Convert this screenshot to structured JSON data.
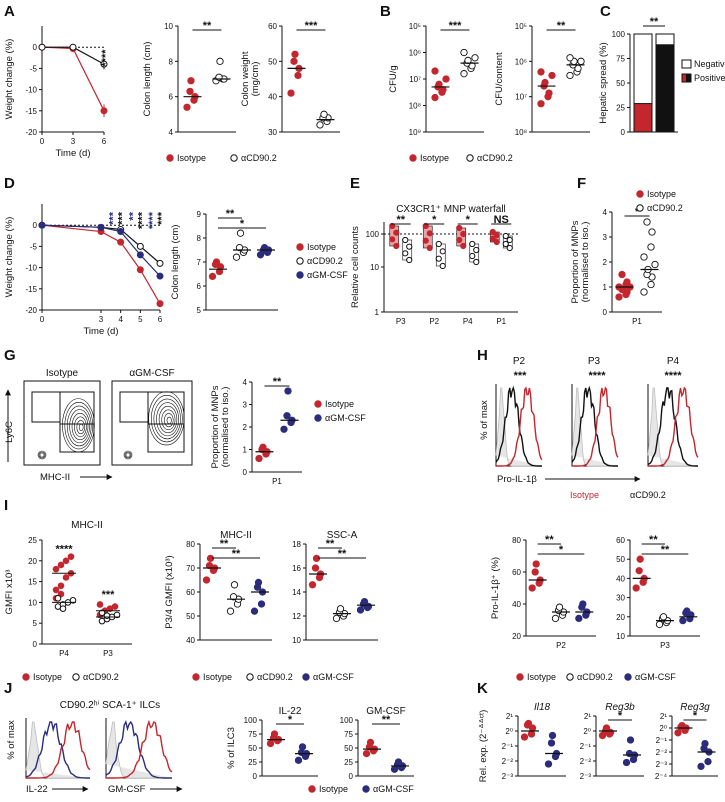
{
  "colors": {
    "red": "#c4262e",
    "navy": "#2b2c7c",
    "black": "#111111",
    "grey": "#bdbdbd",
    "pink": "#e8a5a8"
  },
  "legend": {
    "isotype": "Isotype",
    "acd90": "αCD90.2",
    "agm": "αGM-CSF"
  },
  "letters": {
    "A": "A",
    "B": "B",
    "C": "C",
    "D": "D",
    "E": "E",
    "F": "F",
    "G": "G",
    "H": "H",
    "I": "I",
    "J": "J",
    "K": "K"
  },
  "chart_data": [
    {
      "id": "A1",
      "type": "line",
      "ylabel": "Weight change (%)",
      "xlabel": "Time (d)",
      "x": [
        0,
        3,
        6
      ],
      "xlim": [
        0,
        6
      ],
      "ylim": [
        -20,
        5
      ],
      "yticks": [
        0,
        -5,
        -10,
        -15,
        -20
      ],
      "xticks": [
        0,
        3,
        6
      ],
      "series": [
        {
          "name": "Isotype",
          "values": [
            0,
            -0.3,
            -15
          ],
          "err": [
            0.3,
            0.5,
            1.5
          ]
        },
        {
          "name": "αCD90.2",
          "values": [
            0,
            0,
            -4
          ],
          "err": [
            0.3,
            0.4,
            1.2
          ]
        }
      ],
      "annotation": "****"
    },
    {
      "id": "A2",
      "type": "scatter",
      "ylabel": "Colon length (cm)",
      "ylim": [
        4,
        10
      ],
      "yticks": [
        4,
        6,
        8,
        10
      ],
      "groups": [
        {
          "name": "Isotype",
          "values": [
            5.4,
            5.8,
            6.0,
            6.3,
            6.9
          ],
          "median": 6.0
        },
        {
          "name": "αCD90.2",
          "values": [
            6.9,
            7.0,
            7.0,
            7.1,
            8.0
          ],
          "median": 7.0
        }
      ],
      "annotation": "**"
    },
    {
      "id": "A3",
      "type": "scatter",
      "ylabel": "Colon weight (mg/cm)",
      "ylim": [
        30,
        60
      ],
      "yticks": [
        30,
        40,
        50,
        60
      ],
      "groups": [
        {
          "name": "Isotype",
          "values": [
            41,
            46,
            48,
            50,
            52
          ],
          "median": 48
        },
        {
          "name": "αCD90.2",
          "values": [
            32,
            33,
            34,
            34,
            35
          ],
          "median": 33.5
        }
      ],
      "annotation": "***"
    },
    {
      "id": "B1",
      "type": "scatter",
      "ylabel": "CFU/g",
      "log": true,
      "ylim_exp": [
        5,
        9
      ],
      "yticks": [
        "10⁵",
        "10⁶",
        "10⁷",
        "10⁸",
        "10⁹"
      ],
      "groups": [
        {
          "name": "Isotype",
          "values_exp": [
            6.3,
            6.5,
            6.6,
            6.7,
            6.8,
            7.0,
            7.3
          ],
          "median_exp": 6.7
        },
        {
          "name": "αCD90.2",
          "values_exp": [
            7.2,
            7.4,
            7.5,
            7.6,
            7.7,
            7.8,
            8.0
          ],
          "median_exp": 7.6
        }
      ],
      "annotation": "***"
    },
    {
      "id": "B2",
      "type": "scatter",
      "ylabel": "CFU/content",
      "log": true,
      "ylim_exp": [
        5,
        8
      ],
      "yticks": [
        "10⁵",
        "10⁶",
        "10⁷",
        "10⁸"
      ],
      "groups": [
        {
          "name": "Isotype",
          "values_exp": [
            5.8,
            6.0,
            6.1,
            6.3,
            6.4,
            6.6,
            6.7
          ],
          "median_exp": 6.3
        },
        {
          "name": "αCD90.2",
          "values_exp": [
            6.6,
            6.7,
            6.8,
            6.9,
            7.0,
            7.0,
            7.1
          ],
          "median_exp": 6.9
        }
      ],
      "annotation": "**"
    },
    {
      "id": "C",
      "type": "bar",
      "ylabel": "Hepatic spread (%)",
      "ylim": [
        0,
        100
      ],
      "yticks": [
        0,
        25,
        50,
        75,
        100
      ],
      "categories": [
        "Isotype",
        "αCD90.2"
      ],
      "positive": [
        29,
        89
      ],
      "legend": [
        "Negative",
        "Positive"
      ],
      "annotation": "**"
    },
    {
      "id": "D1",
      "type": "line",
      "ylabel": "Weight change (%)",
      "xlabel": "Time (d)",
      "x": [
        0,
        3,
        4,
        5,
        6
      ],
      "ylim": [
        -20,
        5
      ],
      "yticks": [
        0,
        -5,
        -10,
        -15,
        -20
      ],
      "xticks": [
        0,
        3,
        4,
        5,
        6
      ],
      "series": [
        {
          "name": "Isotype",
          "values": [
            0,
            -1.5,
            -4,
            -10.5,
            -18.5
          ]
        },
        {
          "name": "αCD90.2",
          "values": [
            0,
            -0.5,
            -1,
            -5,
            -9
          ]
        },
        {
          "name": "αGM-CSF",
          "values": [
            0,
            -0.5,
            -1.5,
            -7,
            -12
          ]
        }
      ],
      "annotations": [
        {
          "x": 4,
          "navy": "***",
          "black": "***"
        },
        {
          "x": 5,
          "navy": "**",
          "black": "****"
        },
        {
          "x": 6,
          "navy": "****",
          "black": "***"
        }
      ]
    },
    {
      "id": "D2",
      "type": "scatter",
      "ylabel": "Colon length (cm)",
      "ylim": [
        5,
        9
      ],
      "yticks": [
        5,
        6,
        7,
        8,
        9
      ],
      "groups": [
        {
          "name": "Isotype",
          "values": [
            6.4,
            6.6,
            6.8,
            6.9,
            7.0
          ],
          "median": 6.7
        },
        {
          "name": "αCD90.2",
          "values": [
            7.2,
            7.4,
            7.5,
            7.6,
            8.2
          ],
          "median": 7.5
        },
        {
          "name": "αGM-CSF",
          "values": [
            7.3,
            7.4,
            7.5,
            7.5,
            7.6
          ],
          "median": 7.5
        }
      ],
      "annotations": [
        "**",
        "*"
      ]
    },
    {
      "id": "E",
      "type": "scatter",
      "title": "CX3CR1⁺ MNP waterfall",
      "ylabel": "Relative cell counts",
      "log": true,
      "yticks": [
        "1",
        "10",
        "100"
      ],
      "categories": [
        "P3",
        "P2",
        "P4",
        "P1"
      ],
      "annotations": [
        "**",
        "*",
        "*",
        "NS"
      ]
    },
    {
      "id": "F",
      "type": "scatter",
      "ylabel": "Proportion of MNPs (normalised to iso.)",
      "ylim": [
        0,
        4
      ],
      "yticks": [
        0,
        1,
        2,
        3,
        4
      ],
      "xlabel": "P1",
      "groups": [
        {
          "name": "Isotype",
          "values": [
            0.6,
            0.7,
            0.8,
            0.9,
            0.9,
            1.0,
            1.0,
            1.1,
            1.2,
            1.5
          ],
          "median": 1.0
        },
        {
          "name": "αCD90.2",
          "values": [
            0.8,
            1.1,
            1.4,
            1.5,
            1.7,
            1.9,
            2.2,
            2.6,
            3.2,
            3.6
          ],
          "median": 1.7
        }
      ],
      "annotation": "*"
    },
    {
      "id": "G",
      "type": "scatter",
      "ylabel": "Proportion of MNPs (normalised to iso.)",
      "ylim": [
        0,
        4
      ],
      "yticks": [
        0,
        1,
        2,
        3,
        4
      ],
      "xlabel": "P1",
      "groups": [
        {
          "name": "Isotype",
          "values": [
            0.6,
            0.8,
            0.9,
            1.0,
            1.1
          ],
          "median": 0.9
        },
        {
          "name": "αGM-CSF",
          "values": [
            1.9,
            2.2,
            2.3,
            2.5,
            3.6
          ],
          "median": 2.3
        }
      ],
      "annotation": "**"
    },
    {
      "id": "I1",
      "type": "scatter",
      "title": "MHC-II",
      "ylabel": "GMFI x10³",
      "ylim": [
        0,
        25
      ],
      "yticks": [
        0,
        5,
        10,
        15,
        20,
        25
      ],
      "categories": [
        "P4",
        "P3"
      ],
      "annotations": [
        "****",
        "***"
      ]
    },
    {
      "id": "I2",
      "type": "scatter",
      "title": "MHC-II",
      "ylabel": "P3/4 GMFI (x10³)",
      "ylim": [
        40,
        80
      ],
      "yticks": [
        40,
        50,
        60,
        70,
        80
      ],
      "groups": [
        {
          "name": "Isotype",
          "values": [
            65,
            69,
            70,
            71,
            74
          ],
          "median": 70
        },
        {
          "name": "αCD90.2",
          "values": [
            52,
            55,
            57,
            58,
            63
          ],
          "median": 57
        },
        {
          "name": "αGM-CSF",
          "values": [
            52,
            55,
            60,
            62,
            64
          ],
          "median": 60
        }
      ],
      "annotations": [
        "**",
        "**"
      ]
    },
    {
      "id": "I3",
      "type": "scatter",
      "title": "SSC-A",
      "ylim": [
        10,
        18
      ],
      "yticks": [
        10,
        12,
        14,
        16,
        18
      ],
      "groups": [
        {
          "name": "Isotype",
          "values": [
            14.6,
            15.2,
            15.5,
            16.0,
            16.8
          ],
          "median": 15.5
        },
        {
          "name": "αCD90.2",
          "values": [
            11.8,
            12.0,
            12.2,
            12.3,
            12.6
          ],
          "median": 12.2
        },
        {
          "name": "αGM-CSF",
          "values": [
            12.5,
            12.7,
            12.8,
            13.0,
            13.2
          ],
          "median": 12.9
        }
      ],
      "annotations": [
        "**",
        "**"
      ]
    },
    {
      "id": "I4",
      "type": "scatter",
      "ylabel": "Pro-IL-1β⁺ (%)",
      "ylim": [
        20,
        80
      ],
      "yticks": [
        20,
        40,
        60,
        80
      ],
      "xlabel": "P2",
      "groups": [
        {
          "name": "Isotype",
          "values": [
            50,
            53,
            55,
            60,
            65
          ],
          "median": 55
        },
        {
          "name": "αCD90.2",
          "values": [
            31,
            33,
            35,
            36,
            38
          ],
          "median": 35
        },
        {
          "name": "αGM-CSF",
          "values": [
            31,
            33,
            35,
            38,
            40
          ],
          "median": 35
        }
      ],
      "annotations": [
        "**",
        "*"
      ]
    },
    {
      "id": "I5",
      "type": "scatter",
      "ylim": [
        10,
        60
      ],
      "yticks": [
        10,
        20,
        30,
        40,
        50,
        60
      ],
      "xlabel": "P3",
      "groups": [
        {
          "name": "Isotype",
          "values": [
            35,
            38,
            40,
            44,
            50
          ],
          "median": 40
        },
        {
          "name": "αCD90.2",
          "values": [
            16,
            17,
            18,
            19,
            20
          ],
          "median": 18
        },
        {
          "name": "αGM-CSF",
          "values": [
            18,
            19,
            21,
            22,
            23
          ],
          "median": 20
        }
      ],
      "annotations": [
        "**",
        "**"
      ]
    },
    {
      "id": "J1",
      "type": "scatter",
      "title": "IL-22",
      "ylabel": "% of ILC3",
      "ylim": [
        0,
        100
      ],
      "yticks": [
        0,
        25,
        50,
        75,
        100
      ],
      "groups": [
        {
          "name": "Isotype",
          "values": [
            58,
            63,
            65,
            68,
            75
          ],
          "median": 65
        },
        {
          "name": "αGM-CSF",
          "values": [
            28,
            35,
            40,
            42,
            52
          ],
          "median": 40
        }
      ],
      "annotation": "*"
    },
    {
      "id": "J2",
      "type": "scatter",
      "title": "GM-CSF",
      "ylim": [
        0,
        100
      ],
      "yticks": [
        0,
        25,
        50,
        75,
        100
      ],
      "groups": [
        {
          "name": "Isotype",
          "values": [
            40,
            45,
            48,
            52,
            60
          ],
          "median": 48
        },
        {
          "name": "αGM-CSF",
          "values": [
            12,
            15,
            18,
            20,
            25
          ],
          "median": 18
        }
      ],
      "annotation": "**"
    },
    {
      "id": "K1",
      "type": "scatter",
      "title": "Il18",
      "ylabel": "Rel. exp. (2⁻ᐞᐞᶜᵗ)",
      "ylim_exp": [
        -3,
        1
      ],
      "yticks": [
        "2¹",
        "2⁰",
        "2⁻¹",
        "2⁻²",
        "2⁻³"
      ],
      "groups": [
        {
          "name": "Isotype",
          "values": [
            -0.4,
            -0.2,
            0.2,
            0.4,
            0.5
          ],
          "median": 0
        },
        {
          "name": "αGM-CSF",
          "values": [
            -2.2,
            -1.7,
            -1.5,
            -0.8,
            -0.3
          ],
          "median": -1.5
        }
      ]
    },
    {
      "id": "K2",
      "type": "scatter",
      "title": "Reg3b",
      "ylim_exp": [
        -3,
        1
      ],
      "yticks": [
        "2¹",
        "2⁰",
        "2⁻¹",
        "2⁻²",
        "2⁻³"
      ],
      "groups": [
        {
          "name": "Isotype",
          "values": [
            -0.3,
            -0.2,
            -0.1,
            0.0,
            0.2
          ],
          "median": 0
        },
        {
          "name": "αGM-CSF",
          "values": [
            -2.1,
            -1.9,
            -1.6,
            -1.5,
            -0.6
          ],
          "median": -1.6
        }
      ],
      "annotation": "*"
    },
    {
      "id": "K3",
      "type": "scatter",
      "title": "Reg3g",
      "ylim_exp": [
        -4,
        1
      ],
      "yticks": [
        "2¹",
        "2⁰",
        "2⁻¹",
        "2⁻²",
        "2⁻³",
        "2⁻⁴"
      ],
      "groups": [
        {
          "name": "Isotype",
          "values": [
            -0.4,
            -0.2,
            0.0,
            0.1,
            0.2
          ],
          "median": 0
        },
        {
          "name": "αGM-CSF",
          "values": [
            -3.2,
            -2.8,
            -2.0,
            -1.7,
            -1.3
          ],
          "median": -2.0
        }
      ],
      "annotation": "*"
    }
  ],
  "labels": {
    "flow": {
      "ly6c": "Ly6C",
      "mhc": "MHC-II",
      "isotype": "Isotype",
      "agm": "αGM-CSF",
      "p1": "P1"
    },
    "H": {
      "p2": "P2",
      "p3": "P3",
      "p4": "P4",
      "ylabel": "% of max",
      "xlabel": "Pro-IL-1β",
      "iso": "Isotype",
      "acd": "αCD90.2",
      "s1": "***",
      "s2": "****",
      "s3": "****"
    },
    "J": {
      "title": "CD90.2ʰⁱ SCA-1⁺ ILCs",
      "ylabel": "% of max",
      "x1": "IL-22",
      "x2": "GM-CSF"
    }
  }
}
